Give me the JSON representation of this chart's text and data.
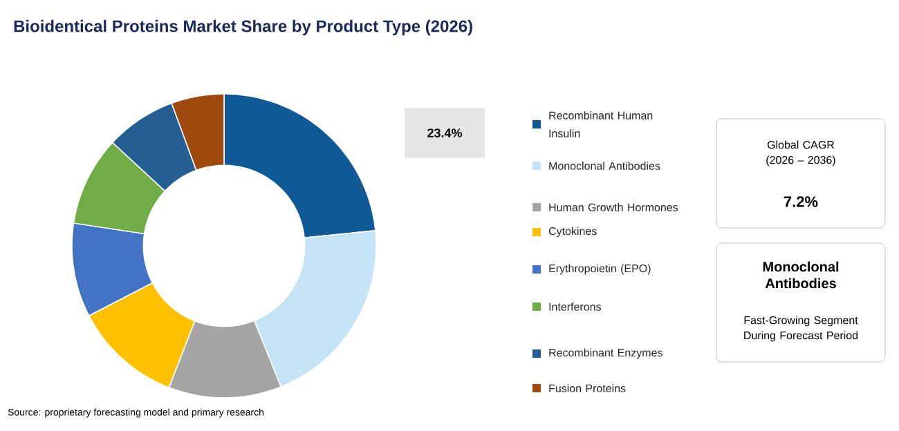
{
  "chart_data": {
    "type": "donut",
    "title": "Bioidentical Proteins Market Share by Product Type (2026)",
    "categories": [
      "Recombinant Human Insulin",
      "Monoclonal Antibodies",
      "Human Growth Hormones",
      "Cytokines",
      "Erythropoietin (EPO)",
      "Interferons",
      "Recombinant Enzymes",
      "Fusion Proteins"
    ],
    "values": [
      23.4,
      20.5,
      12,
      11.5,
      10,
      9.5,
      7.5,
      5.6
    ],
    "colors": [
      "#0f5a96",
      "#c4e3f7",
      "#a5a5a5",
      "#ffc000",
      "#4472c4",
      "#70ad47",
      "#255e91",
      "#9e480e"
    ],
    "value_labels": [
      "23.4%",
      null,
      null,
      null,
      null,
      null,
      null,
      null
    ],
    "legend": "right",
    "annotations": [
      "Source: proprietary forecasting model and primary research",
      "Global CAGR (2026 – 2036)",
      "7.2%",
      "Monoclonal Antibodies",
      "Fast-Growing Segment During Forecast Period"
    ]
  }
}
